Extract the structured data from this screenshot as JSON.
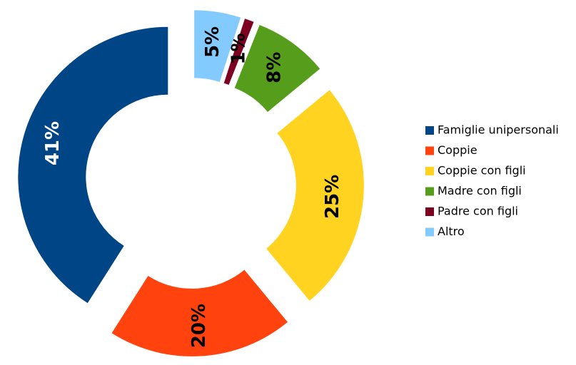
{
  "chart_data": {
    "type": "donut",
    "categories": [
      "Famiglie unipersonali",
      "Coppie",
      "Coppie con figli",
      "Madre con figli",
      "Padre con figli",
      "Altro"
    ],
    "values": [
      41,
      20,
      25,
      8,
      1,
      5
    ],
    "value_labels": [
      "41%",
      "20%",
      "25%",
      "8%",
      "1%",
      "5%"
    ],
    "colors": [
      "#004586",
      "#ff420e",
      "#ffd320",
      "#579d1c",
      "#7e0021",
      "#83caff"
    ],
    "legend": "right"
  }
}
